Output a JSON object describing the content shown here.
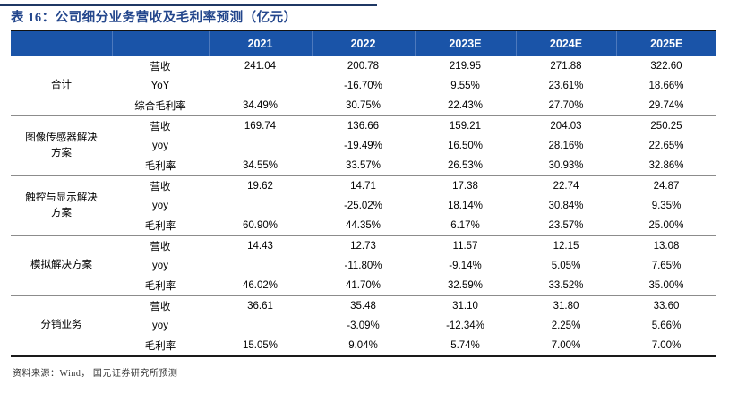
{
  "title": "表 16：公司细分业务营收及毛利率预测（亿元）",
  "source_note": "资料来源：Wind， 国元证券研究所预测",
  "colors": {
    "header_bg": "#1A54A8",
    "header_text": "#FFFFFF",
    "title_text": "#23468C",
    "body_text": "#000000",
    "group_separator": "#8C8C8C",
    "strong_border": "#1A1A1A"
  },
  "table": {
    "year_headers": [
      "2021",
      "2022",
      "2023E",
      "2024E",
      "2025E"
    ],
    "groups": [
      {
        "name": "合计",
        "rows": [
          {
            "metric": "营收",
            "values": [
              "241.04",
              "200.78",
              "219.95",
              "271.88",
              "322.60"
            ]
          },
          {
            "metric": "YoY",
            "values": [
              "",
              "-16.70%",
              "9.55%",
              "23.61%",
              "18.66%"
            ]
          },
          {
            "metric": "综合毛利率",
            "values": [
              "34.49%",
              "30.75%",
              "22.43%",
              "27.70%",
              "29.74%"
            ]
          }
        ]
      },
      {
        "name": "图像传感器解决\n方案",
        "rows": [
          {
            "metric": "营收",
            "values": [
              "169.74",
              "136.66",
              "159.21",
              "204.03",
              "250.25"
            ]
          },
          {
            "metric": "yoy",
            "values": [
              "",
              "-19.49%",
              "16.50%",
              "28.16%",
              "22.65%"
            ]
          },
          {
            "metric": "毛利率",
            "values": [
              "34.55%",
              "33.57%",
              "26.53%",
              "30.93%",
              "32.86%"
            ]
          }
        ]
      },
      {
        "name": "触控与显示解决\n方案",
        "rows": [
          {
            "metric": "营收",
            "values": [
              "19.62",
              "14.71",
              "17.38",
              "22.74",
              "24.87"
            ]
          },
          {
            "metric": "yoy",
            "values": [
              "",
              "-25.02%",
              "18.14%",
              "30.84%",
              "9.35%"
            ]
          },
          {
            "metric": "毛利率",
            "values": [
              "60.90%",
              "44.35%",
              "6.17%",
              "23.57%",
              "25.00%"
            ]
          }
        ]
      },
      {
        "name": "模拟解决方案",
        "rows": [
          {
            "metric": "营收",
            "values": [
              "14.43",
              "12.73",
              "11.57",
              "12.15",
              "13.08"
            ]
          },
          {
            "metric": "yoy",
            "values": [
              "",
              "-11.80%",
              "-9.14%",
              "5.05%",
              "7.65%"
            ]
          },
          {
            "metric": "毛利率",
            "values": [
              "46.02%",
              "41.70%",
              "32.59%",
              "33.52%",
              "35.00%"
            ]
          }
        ]
      },
      {
        "name": "分销业务",
        "rows": [
          {
            "metric": "营收",
            "values": [
              "36.61",
              "35.48",
              "31.10",
              "31.80",
              "33.60"
            ]
          },
          {
            "metric": "yoy",
            "values": [
              "",
              "-3.09%",
              "-12.34%",
              "2.25%",
              "5.66%"
            ]
          },
          {
            "metric": "毛利率",
            "values": [
              "15.05%",
              "9.04%",
              "5.74%",
              "7.00%",
              "7.00%"
            ]
          }
        ]
      }
    ]
  }
}
